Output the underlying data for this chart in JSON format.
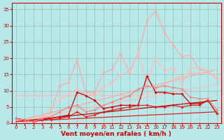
{
  "background_color": "#b8e8e8",
  "grid_color": "#9bbcbc",
  "xlabel": "Vent moyen/en rafales ( km/h )",
  "xlabel_color": "#cc0000",
  "xlabel_fontsize": 6.5,
  "xtick_fontsize": 5,
  "ytick_fontsize": 5,
  "tick_color": "#cc0000",
  "xlim": [
    -0.5,
    23.5
  ],
  "ylim": [
    0,
    37
  ],
  "yticks": [
    0,
    5,
    10,
    15,
    20,
    25,
    30,
    35
  ],
  "xticks": [
    0,
    1,
    2,
    3,
    4,
    5,
    6,
    7,
    8,
    9,
    10,
    11,
    12,
    13,
    14,
    15,
    16,
    17,
    18,
    19,
    20,
    21,
    22,
    23
  ],
  "series": [
    {
      "x": [
        0,
        1,
        2,
        3,
        4,
        5,
        6,
        7,
        8,
        9,
        10,
        11,
        12,
        13,
        14,
        15,
        16,
        17,
        18,
        19,
        20,
        21,
        22,
        23
      ],
      "y": [
        1.5,
        0.5,
        0.5,
        1.0,
        3.5,
        11.5,
        12.5,
        19.5,
        9.5,
        9.5,
        15.5,
        16.5,
        21.5,
        15.5,
        21.5,
        31.5,
        34.5,
        28.0,
        24.0,
        20.5,
        21.0,
        16.5,
        16.0,
        13.5
      ],
      "color": "#ffaaaa",
      "linewidth": 0.9,
      "marker": "D",
      "markersize": 1.8
    },
    {
      "x": [
        0,
        1,
        2,
        3,
        4,
        5,
        6,
        7,
        8,
        9,
        10,
        11,
        12,
        13,
        14,
        15,
        16,
        17,
        18,
        19,
        20,
        21,
        22,
        23
      ],
      "y": [
        1.5,
        0.5,
        0.5,
        2.0,
        4.5,
        7.0,
        9.0,
        10.5,
        8.5,
        9.0,
        11.0,
        12.5,
        15.0,
        16.0,
        21.5,
        12.0,
        20.0,
        16.0,
        17.0,
        12.0,
        17.0,
        17.0,
        16.0,
        13.5
      ],
      "color": "#ffbbbb",
      "linewidth": 0.9,
      "marker": "D",
      "markersize": 1.8
    },
    {
      "x": [
        0,
        1,
        2,
        3,
        4,
        5,
        6,
        7,
        8,
        9,
        10,
        11,
        12,
        13,
        14,
        15,
        16,
        17,
        18,
        19,
        20,
        21,
        22,
        23
      ],
      "y": [
        8.5,
        8.5,
        8.5,
        8.5,
        8.5,
        8.5,
        8.5,
        8.5,
        8.5,
        8.5,
        8.5,
        8.5,
        8.5,
        8.5,
        8.5,
        9.0,
        10.5,
        12.0,
        13.5,
        14.5,
        15.5,
        15.5,
        15.5,
        14.0
      ],
      "color": "#ffbbbb",
      "linewidth": 0.9,
      "marker": "D",
      "markersize": 1.8
    },
    {
      "x": [
        0,
        23
      ],
      "y": [
        0.5,
        16.5
      ],
      "color": "#ffaaaa",
      "linewidth": 0.9,
      "marker": null,
      "markersize": 0
    },
    {
      "x": [
        0,
        23
      ],
      "y": [
        0.5,
        12.0
      ],
      "color": "#ffbbbb",
      "linewidth": 0.9,
      "marker": null,
      "markersize": 0
    },
    {
      "x": [
        0,
        1,
        2,
        3,
        4,
        5,
        6,
        7,
        8,
        9,
        10,
        11,
        12,
        13,
        14,
        15,
        16,
        17,
        18,
        19,
        20,
        21,
        22,
        23
      ],
      "y": [
        1.5,
        1.0,
        0.5,
        1.0,
        1.5,
        2.0,
        2.5,
        9.5,
        8.5,
        7.0,
        4.5,
        5.0,
        5.5,
        5.5,
        5.5,
        14.5,
        9.5,
        9.5,
        9.0,
        9.0,
        6.0,
        6.0,
        7.0,
        3.0
      ],
      "color": "#cc0000",
      "linewidth": 0.9,
      "marker": "D",
      "markersize": 1.8
    },
    {
      "x": [
        0,
        1,
        2,
        3,
        4,
        5,
        6,
        7,
        8,
        9,
        10,
        11,
        12,
        13,
        14,
        15,
        16,
        17,
        18,
        19,
        20,
        21,
        22,
        23
      ],
      "y": [
        1.5,
        1.0,
        0.5,
        1.0,
        1.0,
        1.5,
        2.0,
        3.5,
        2.0,
        2.5,
        3.5,
        4.0,
        4.5,
        5.0,
        5.5,
        5.5,
        5.0,
        5.0,
        5.5,
        5.0,
        5.5,
        5.5,
        7.0,
        3.0
      ],
      "color": "#dd2222",
      "linewidth": 0.9,
      "marker": "D",
      "markersize": 1.8
    },
    {
      "x": [
        0,
        23
      ],
      "y": [
        0.5,
        7.0
      ],
      "color": "#cc0000",
      "linewidth": 0.9,
      "marker": null,
      "markersize": 0
    },
    {
      "x": [
        0,
        23
      ],
      "y": [
        0.5,
        3.5
      ],
      "color": "#dd2222",
      "linewidth": 0.9,
      "marker": null,
      "markersize": 0
    },
    {
      "x": [
        0,
        1,
        2,
        3,
        4,
        5,
        6,
        7,
        8,
        9,
        10,
        11,
        12,
        13,
        14,
        15,
        16,
        17,
        18,
        19,
        20,
        21,
        22,
        23
      ],
      "y": [
        1.5,
        1.0,
        0.5,
        1.5,
        2.0,
        3.5,
        5.0,
        5.5,
        3.5,
        4.0,
        5.5,
        6.5,
        7.5,
        8.5,
        10.5,
        11.5,
        11.0,
        11.5,
        11.0,
        10.5,
        8.0,
        7.5,
        7.5,
        4.0
      ],
      "color": "#ee8888",
      "linewidth": 0.9,
      "marker": "D",
      "markersize": 1.8
    }
  ]
}
